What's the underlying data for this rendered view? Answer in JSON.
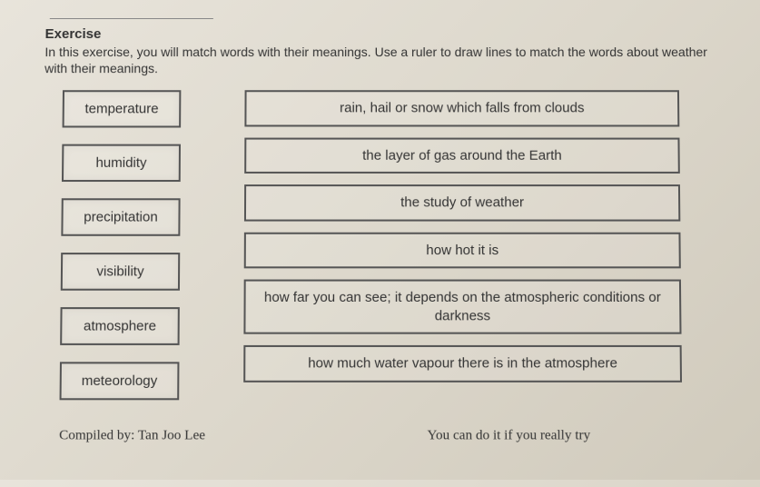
{
  "header": {
    "title": "Exercise",
    "instructions": "In this exercise, you will match words with their meanings. Use a ruler to draw lines to match the words about weather with their meanings."
  },
  "terms": [
    "temperature",
    "humidity",
    "precipitation",
    "visibility",
    "atmosphere",
    "meteorology"
  ],
  "definitions": [
    "rain, hail or snow which falls from clouds",
    "the layer of gas around the Earth",
    "the study of weather",
    "how hot it is",
    "how far you can see; it depends on the atmospheric conditions or darkness",
    "how much water vapour there is in the atmosphere"
  ],
  "footer": {
    "compiled": "Compiled by: Tan Joo Lee",
    "encouragement": "You can do it if you really try"
  },
  "style": {
    "background_gradient": [
      "#e8e4db",
      "#ddd8cc",
      "#d0cabc"
    ],
    "border_color": "#555",
    "text_color": "#333",
    "term_box_width": 130,
    "title_fontsize": 15,
    "body_fontsize": 15,
    "instructions_fontsize": 14
  }
}
